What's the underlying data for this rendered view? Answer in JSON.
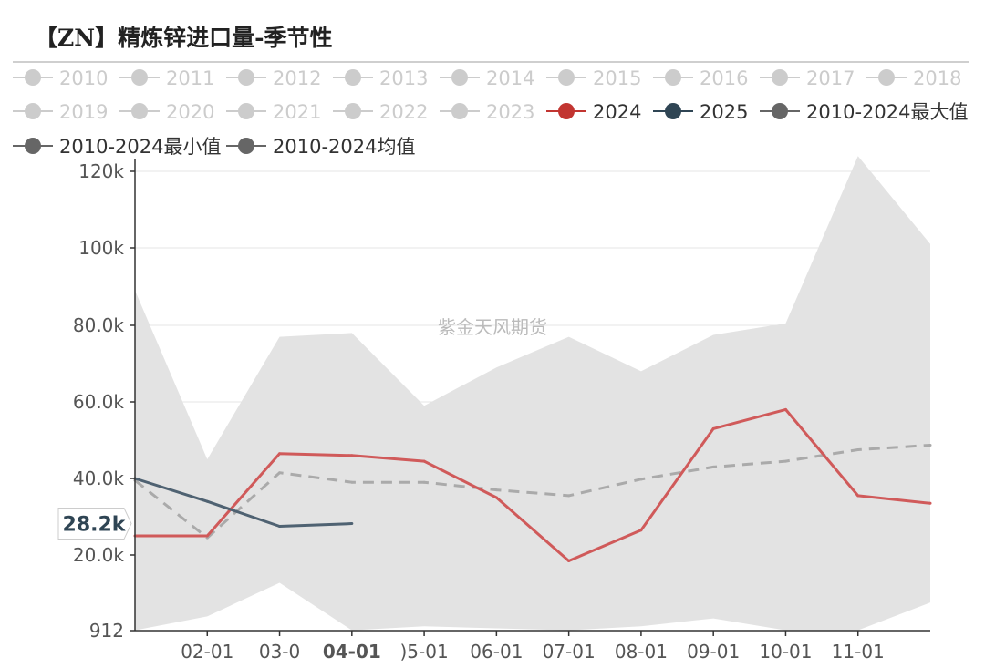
{
  "title": "【ZN】精炼锌进口量-季节性",
  "watermark": "紫金天风期货",
  "chart_data": {
    "type": "line",
    "title": "【ZN】精炼锌进口量-季节性",
    "x_ticks": [
      "02-01",
      "03-0",
      "04-01",
      ")5-01",
      "06-01",
      "07-01",
      "08-01",
      "09-01",
      "10-01",
      "11-01"
    ],
    "y_ticks": [
      "912",
      "20.0k",
      "40.0k",
      "60.0k",
      "80.0k",
      "100k",
      "120k"
    ],
    "ylim": [
      912,
      122000
    ],
    "hover": {
      "x_label": "04-01",
      "y_label": "28.2k"
    },
    "legend": [
      {
        "name": "2010",
        "color": "#cccccc",
        "style": "circle"
      },
      {
        "name": "2011",
        "color": "#cccccc",
        "style": "circle"
      },
      {
        "name": "2012",
        "color": "#cccccc",
        "style": "circle"
      },
      {
        "name": "2013",
        "color": "#cccccc",
        "style": "circle"
      },
      {
        "name": "2014",
        "color": "#cccccc",
        "style": "circle"
      },
      {
        "name": "2015",
        "color": "#cccccc",
        "style": "circle"
      },
      {
        "name": "2016",
        "color": "#cccccc",
        "style": "circle"
      },
      {
        "name": "2017",
        "color": "#cccccc",
        "style": "circle"
      },
      {
        "name": "2018",
        "color": "#cccccc",
        "style": "circle"
      },
      {
        "name": "2019",
        "color": "#cccccc",
        "style": "circle"
      },
      {
        "name": "2020",
        "color": "#cccccc",
        "style": "circle"
      },
      {
        "name": "2021",
        "color": "#cccccc",
        "style": "circle"
      },
      {
        "name": "2022",
        "color": "#cccccc",
        "style": "circle"
      },
      {
        "name": "2023",
        "color": "#cccccc",
        "style": "circle"
      },
      {
        "name": "2024",
        "color": "#c23531",
        "style": "circle"
      },
      {
        "name": "2025",
        "color": "#2f4554",
        "style": "circle"
      },
      {
        "name": "2010-2024最大值",
        "color": "#666666",
        "style": "circle"
      },
      {
        "name": "2010-2024最小值",
        "color": "#666666",
        "style": "circle"
      },
      {
        "name": "2010-2024均值",
        "color": "#666666",
        "style": "circle"
      }
    ],
    "months": [
      1,
      2,
      3,
      4,
      5,
      6,
      7,
      8,
      9,
      10,
      11,
      12
    ],
    "series": [
      {
        "name": "2010-2024最大值",
        "color": "#e3e3e3",
        "values": [
          89000,
          45000,
          77000,
          78000,
          59000,
          69000,
          77000,
          68000,
          77500,
          80500,
          124000,
          101000
        ]
      },
      {
        "name": "2010-2024最小值",
        "color": "#e3e3e3",
        "values": [
          1000,
          4500,
          13000,
          1000,
          2000,
          1500,
          1000,
          2000,
          4000,
          1000,
          1000,
          8000
        ]
      },
      {
        "name": "2010-2024均值",
        "color": "#aaaaaa",
        "values": [
          39500,
          24500,
          41500,
          39000,
          39000,
          37000,
          35500,
          39800,
          43000,
          44500,
          47500,
          48700
        ]
      },
      {
        "name": "2024",
        "color": "#d05a5a",
        "values": [
          25000,
          25000,
          46500,
          46000,
          44500,
          35000,
          18500,
          26500,
          53000,
          58000,
          35500,
          33500
        ]
      },
      {
        "name": "2025",
        "color": "#4f6272",
        "values": [
          40000,
          34000,
          27500,
          28200
        ]
      }
    ]
  }
}
